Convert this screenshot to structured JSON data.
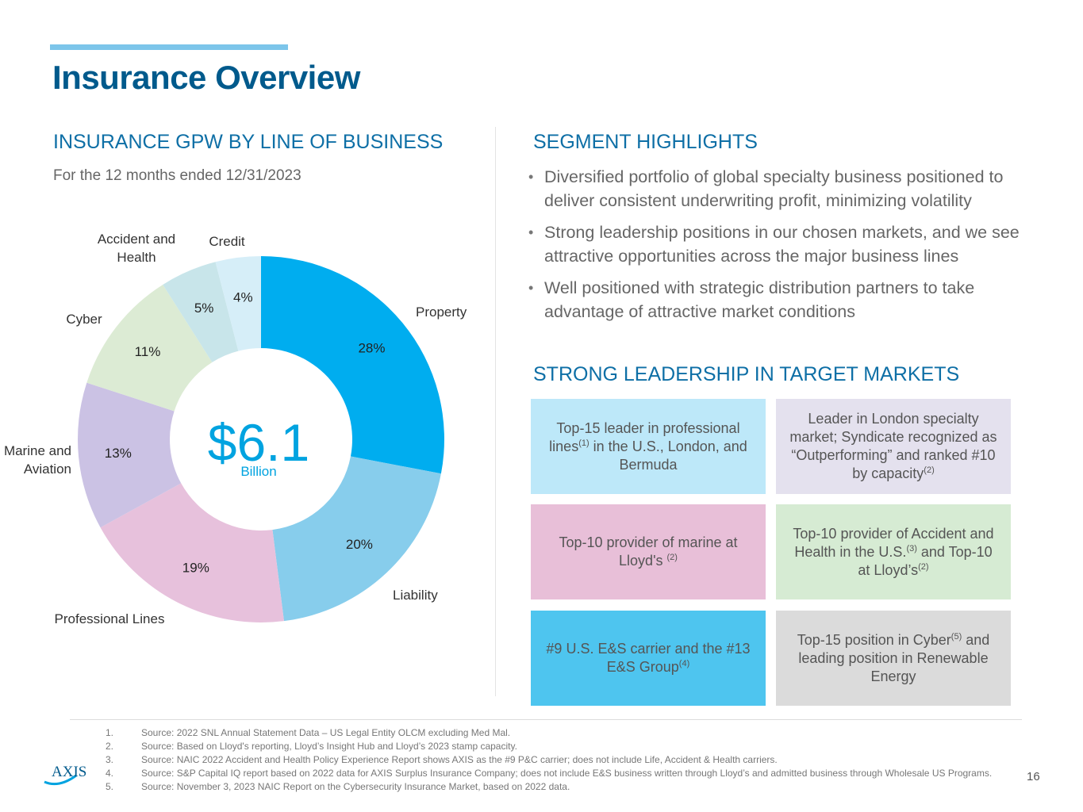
{
  "header": {
    "title": "Insurance Overview"
  },
  "left": {
    "heading": "INSURANCE GPW BY LINE OF BUSINESS",
    "subtitle": "For the 12 months ended 12/31/2023"
  },
  "chart_data": {
    "type": "pie",
    "donut": true,
    "title": "INSURANCE GPW BY LINE OF BUSINESS",
    "subtitle": "For the 12 months ended 12/31/2023",
    "center_value": "$6.1",
    "center_unit": "Billion",
    "categories": [
      "Property",
      "Liability",
      "Professional Lines",
      "Marine and Aviation",
      "Cyber",
      "Accident and Health",
      "Credit"
    ],
    "values": [
      28,
      20,
      19,
      13,
      11,
      5,
      4
    ],
    "value_labels": [
      "28%",
      "20%",
      "19%",
      "13%",
      "11%",
      "5%",
      "4%"
    ],
    "category_lines": [
      [
        "Property"
      ],
      [
        "Liability"
      ],
      [
        "Professional Lines"
      ],
      [
        "Marine and",
        "Aviation"
      ],
      [
        "Cyber"
      ],
      [
        "Accident and",
        "Health"
      ],
      [
        "Credit"
      ]
    ],
    "colors": [
      "#00ADEF",
      "#87CDEC",
      "#E7C1DC",
      "#CBC2E4",
      "#DCEBD4",
      "#C8E5EA",
      "#D6EEF8"
    ]
  },
  "right": {
    "heading": "SEGMENT HIGHLIGHTS",
    "bullet_glyph": "•",
    "bullets": [
      "Diversified portfolio of global specialty business positioned to deliver consistent underwriting profit, minimizing volatility",
      "Strong leadership positions in our chosen markets, and we see attractive opportunities across the major business lines",
      "Well positioned with strategic distribution partners to take advantage of attractive market conditions"
    ],
    "leadership_heading": "STRONG LEADERSHIP IN TARGET MARKETS",
    "boxes": [
      {
        "parts": [
          {
            "t": "Top-15 leader in professional lines"
          },
          {
            "sup": "(1)"
          },
          {
            "t": " in the U.S., London, and Bermuda"
          }
        ],
        "color": "#BDE8F9"
      },
      {
        "parts": [
          {
            "t": "Leader in London specialty market; Syndicate recognized as “Outperforming” and ranked #10 by capacity"
          },
          {
            "sup": "(2)"
          }
        ],
        "color": "#E4E1EE"
      },
      {
        "parts": [
          {
            "t": "Top-10 provider of marine at Lloyd's "
          },
          {
            "sup": "(2)"
          }
        ],
        "color": "#E8BFD8"
      },
      {
        "parts": [
          {
            "t": "Top-10 provider of Accident and Health in the U.S."
          },
          {
            "sup": "(3)"
          },
          {
            "t": " and Top-10 at Lloyd’s"
          },
          {
            "sup": "(2)"
          }
        ],
        "color": "#D6EBD3"
      },
      {
        "parts": [
          {
            "t": "#9 U.S. E&S carrier and the #13 E&S Group"
          },
          {
            "sup": "(4)"
          }
        ],
        "color": "#4EC5EF"
      },
      {
        "parts": [
          {
            "t": "Top-15 position in Cyber"
          },
          {
            "sup": "(5)"
          },
          {
            "t": " and leading position in Renewable Energy"
          }
        ],
        "color": "#DBDBDB"
      }
    ]
  },
  "footnotes": [
    {
      "num": "1.",
      "text": "Source: 2022 SNL Annual Statement Data – US Legal Entity OLCM excluding Med Mal."
    },
    {
      "num": "2.",
      "text": "Source: Based on Lloyd's reporting, Lloyd’s Insight Hub and Lloyd’s 2023 stamp capacity."
    },
    {
      "num": "3.",
      "text": "Source: NAIC 2022 Accident and Health Policy Experience Report shows AXIS as the #9 P&C carrier; does not include Life, Accident & Health carriers."
    },
    {
      "num": "4.",
      "text": "Source: S&P Capital IQ report based on 2022 data for AXIS Surplus Insurance Company; does not include E&S business written through Lloyd’s and admitted business through Wholesale US Programs."
    },
    {
      "num": "5.",
      "text": "Source: November 3, 2023 NAIC Report on the Cybersecurity Insurance Market, based on 2022 data."
    }
  ],
  "footer": {
    "page_number": "16",
    "logo_text": "AXIS",
    "logo_color": "#005A8C",
    "logo_swoosh_color": "#00A3E0"
  }
}
